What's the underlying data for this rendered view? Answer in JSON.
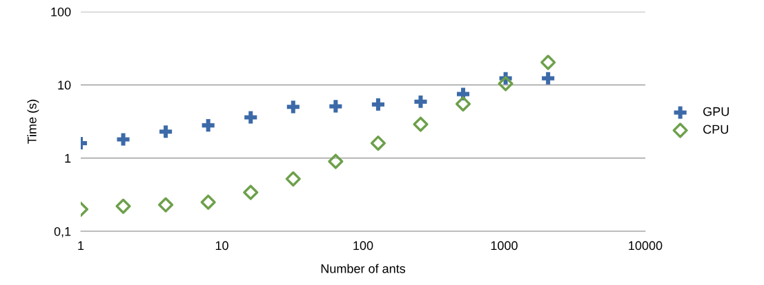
{
  "chart_data": {
    "type": "scatter",
    "xlabel": "Number of ants",
    "ylabel": "Time (s)",
    "log": "xy",
    "x": [
      1,
      2,
      4,
      8,
      16,
      32,
      64,
      128,
      256,
      512,
      1024,
      2048
    ],
    "series": [
      {
        "name": "GPU",
        "color": "#3c6aa8",
        "marker": "cross",
        "values": [
          1.6,
          1.8,
          2.3,
          2.8,
          3.6,
          5.0,
          5.1,
          5.4,
          5.9,
          7.5,
          12.3,
          12.3
        ]
      },
      {
        "name": "CPU",
        "color": "#6da04b",
        "marker": "diamond",
        "values": [
          0.2,
          0.22,
          0.23,
          0.25,
          0.34,
          0.52,
          0.9,
          1.6,
          2.9,
          5.5,
          10.4,
          20.3
        ]
      }
    ],
    "xlim": [
      1,
      10000
    ],
    "xticks": [
      1,
      10,
      100,
      1000,
      10000
    ],
    "ylim": [
      0.1,
      100
    ],
    "yticks": [
      {
        "value": 0.1,
        "label": "0,1"
      },
      1,
      10,
      100
    ],
    "grid": "y",
    "legend": "right"
  }
}
